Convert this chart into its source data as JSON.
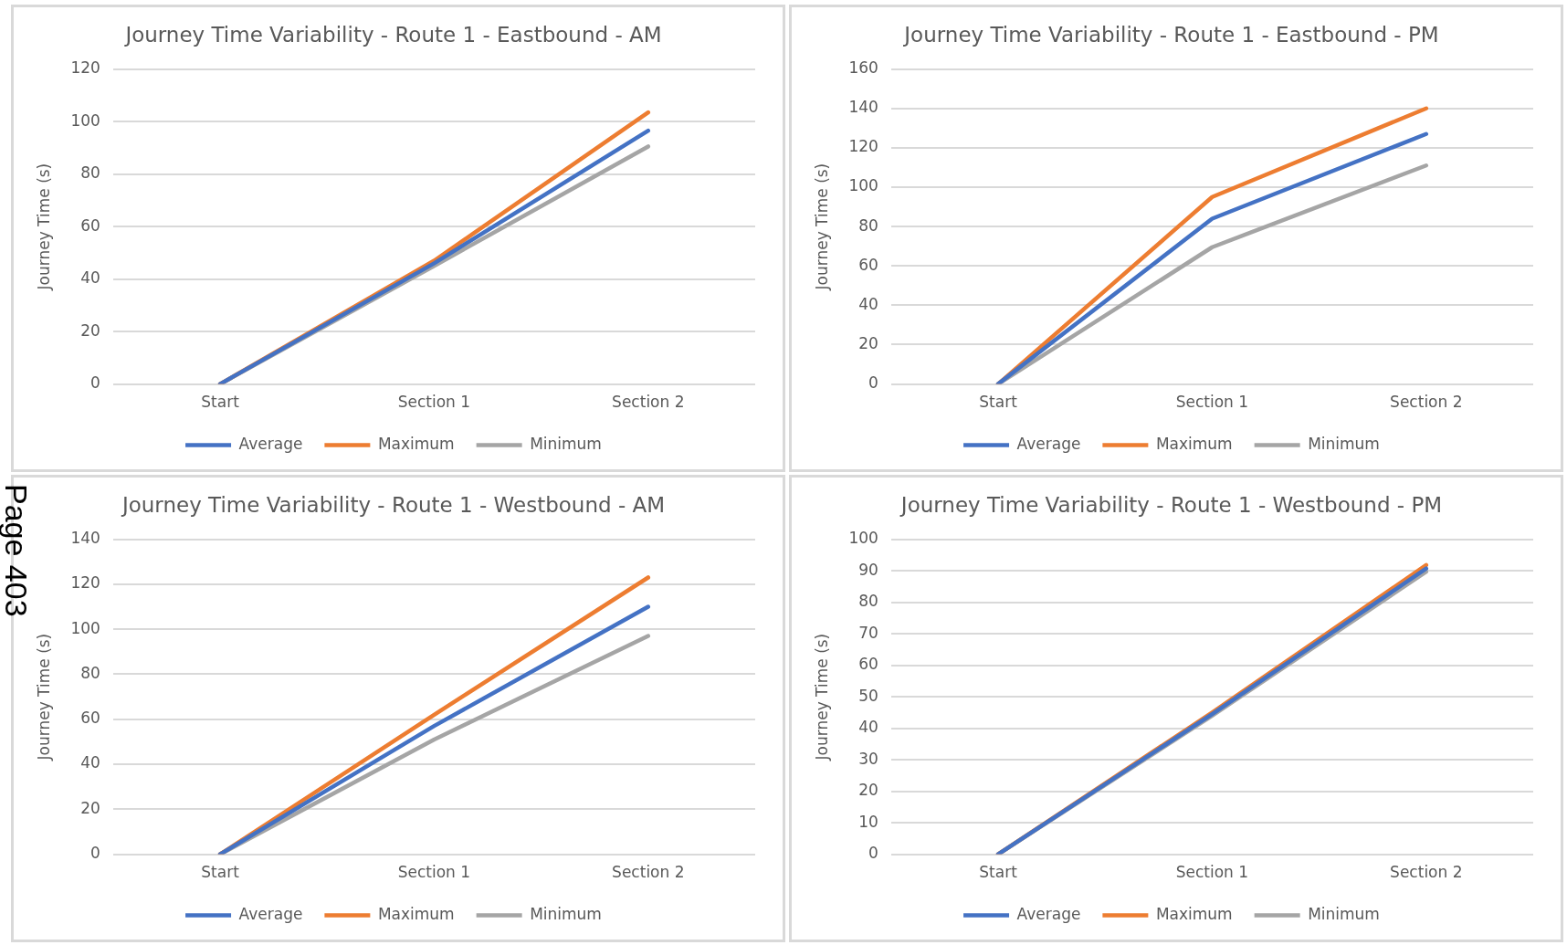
{
  "chart_data": [
    {
      "type": "line",
      "title": "Journey Time Variability - Route 1 - Eastbound - AM",
      "ylabel": "Journey Time (s)",
      "categories": [
        "Start",
        "Section 1",
        "Section 2"
      ],
      "ylim": [
        0,
        120
      ],
      "yticks": [
        0,
        20,
        40,
        60,
        80,
        100,
        120
      ],
      "grid": "y",
      "legend": "bottom",
      "marker": "none",
      "line_style": "solid",
      "series": [
        {
          "name": "Average",
          "color": "#4472c4",
          "values": [
            0,
            46,
            96.5
          ]
        },
        {
          "name": "Maximum",
          "color": "#ed7d31",
          "values": [
            0,
            47,
            103.5
          ]
        },
        {
          "name": "Minimum",
          "color": "#a5a5a5",
          "values": [
            0,
            45,
            90.5
          ]
        }
      ]
    },
    {
      "type": "line",
      "title": "Journey Time Variability - Route 1 - Eastbound - PM",
      "ylabel": "Journey Time (s)",
      "categories": [
        "Start",
        "Section 1",
        "Section 2"
      ],
      "ylim": [
        0,
        160
      ],
      "yticks": [
        0,
        20,
        40,
        60,
        80,
        100,
        120,
        140,
        160
      ],
      "grid": "y",
      "legend": "bottom",
      "marker": "none",
      "line_style": "solid",
      "series": [
        {
          "name": "Average",
          "color": "#4472c4",
          "values": [
            0,
            84,
            127
          ]
        },
        {
          "name": "Maximum",
          "color": "#ed7d31",
          "values": [
            0,
            95,
            140
          ]
        },
        {
          "name": "Minimum",
          "color": "#a5a5a5",
          "values": [
            0,
            69.5,
            111
          ]
        }
      ]
    },
    {
      "type": "line",
      "title": "Journey Time Variability - Route 1 - Westbound - AM",
      "ylabel": "Journey Time (s)",
      "categories": [
        "Start",
        "Section 1",
        "Section 2"
      ],
      "ylim": [
        0,
        140
      ],
      "yticks": [
        0,
        20,
        40,
        60,
        80,
        100,
        120,
        140
      ],
      "grid": "y",
      "legend": "bottom",
      "marker": "none",
      "line_style": "solid",
      "annotations": [
        "Page 403"
      ],
      "series": [
        {
          "name": "Average",
          "color": "#4472c4",
          "values": [
            0,
            57,
            110
          ]
        },
        {
          "name": "Maximum",
          "color": "#ed7d31",
          "values": [
            0,
            62,
            123
          ]
        },
        {
          "name": "Minimum",
          "color": "#a5a5a5",
          "values": [
            0,
            51,
            97
          ]
        }
      ]
    },
    {
      "type": "line",
      "title": "Journey Time Variability - Route 1 - Westbound - PM",
      "ylabel": "Journey Time (s)",
      "categories": [
        "Start",
        "Section 1",
        "Section 2"
      ],
      "ylim": [
        0,
        100
      ],
      "yticks": [
        0,
        10,
        20,
        30,
        40,
        50,
        60,
        70,
        80,
        90,
        100
      ],
      "grid": "y",
      "legend": "bottom",
      "marker": "none",
      "line_style": "solid",
      "series": [
        {
          "name": "Average",
          "color": "#4472c4",
          "values": [
            0,
            44.5,
            90.7
          ]
        },
        {
          "name": "Maximum",
          "color": "#ed7d31",
          "values": [
            0,
            45,
            91.8
          ]
        },
        {
          "name": "Minimum",
          "color": "#a5a5a5",
          "values": [
            0,
            44,
            89.7
          ]
        }
      ]
    }
  ]
}
